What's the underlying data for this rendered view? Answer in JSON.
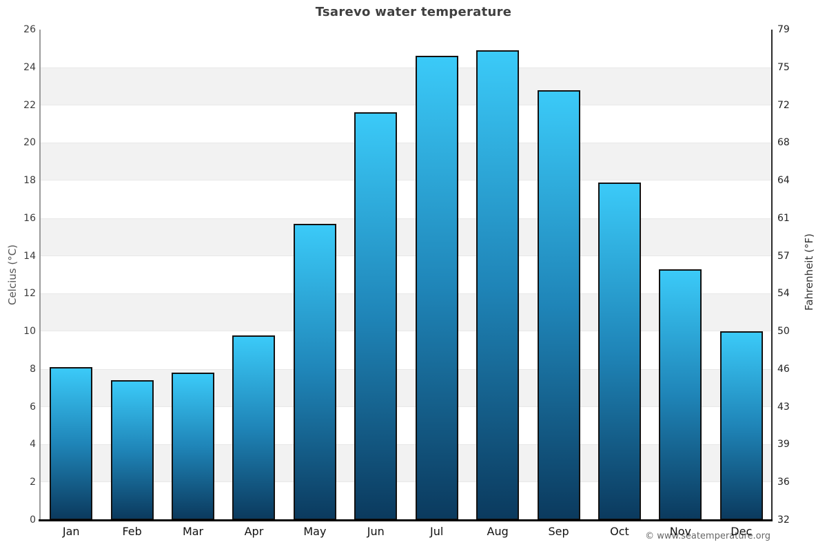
{
  "title": "Tsarevo water temperature",
  "footer": {
    "credit": "© www.seatemperature.org"
  },
  "axes": {
    "left": {
      "title": "Celcius (°C)",
      "ticks": [
        0,
        2,
        4,
        6,
        8,
        10,
        12,
        14,
        16,
        18,
        20,
        22,
        24,
        26
      ]
    },
    "right": {
      "title": "Fahrenheit (°F)",
      "tick_labels": [
        "32",
        "36",
        "39",
        "43",
        "46",
        "50",
        "54",
        "57",
        "61",
        "64",
        "68",
        "72",
        "75",
        "79"
      ]
    }
  },
  "chart_data": {
    "type": "bar",
    "title": "Tsarevo water temperature",
    "categories": [
      "Jan",
      "Feb",
      "Mar",
      "Apr",
      "May",
      "Jun",
      "Jul",
      "Aug",
      "Sep",
      "Oct",
      "Nov",
      "Dec"
    ],
    "values": [
      8.1,
      7.4,
      7.8,
      9.8,
      15.7,
      21.6,
      24.6,
      24.9,
      22.8,
      17.9,
      13.3,
      10.0
    ],
    "series_name": "Water temperature (°C)",
    "xlabel": "",
    "ylabel": "Celcius (°C)",
    "ylabel_secondary": "Fahrenheit (°F)",
    "ylim": [
      0,
      26
    ],
    "grid": "alternating horizontal bands every 2 °C",
    "legend": "none",
    "colors": {
      "bar_gradient_top": "#3bcaf8",
      "bar_gradient_mid": "#1f85b8",
      "bar_gradient_bottom": "#0b3a5e",
      "bar_border": "#111111",
      "band_gray": "#f2f2f2",
      "title_color": "#3f3f3f"
    }
  }
}
